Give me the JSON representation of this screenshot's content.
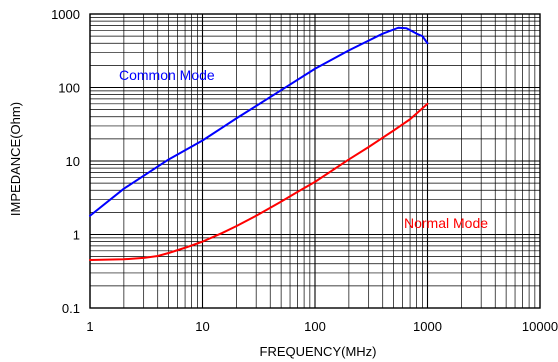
{
  "chart_data": {
    "type": "line",
    "xlabel": "FREQUENCY(MHz)",
    "ylabel": "IMPEDANCE(Ohm)",
    "x_scale": "log",
    "y_scale": "log",
    "xlim": [
      1,
      10000
    ],
    "ylim": [
      0.1,
      1000
    ],
    "grid": true,
    "x_ticks": [
      {
        "value": 1,
        "label": "1"
      },
      {
        "value": 10,
        "label": "10"
      },
      {
        "value": 100,
        "label": "100"
      },
      {
        "value": 1000,
        "label": "1000"
      },
      {
        "value": 10000,
        "label": "10000"
      }
    ],
    "y_ticks": [
      {
        "value": 0.1,
        "label": "0.1"
      },
      {
        "value": 1,
        "label": "1"
      },
      {
        "value": 10,
        "label": "10"
      },
      {
        "value": 100,
        "label": "100"
      },
      {
        "value": 1000,
        "label": "1000"
      }
    ],
    "series": [
      {
        "name": "Common Mode",
        "color": "#0000ff",
        "x": [
          1,
          2,
          5,
          10,
          20,
          50,
          100,
          200,
          400,
          550,
          650,
          800,
          900,
          1000
        ],
        "y": [
          1.8,
          4.2,
          10.5,
          19,
          38,
          92,
          180,
          320,
          540,
          650,
          640,
          540,
          500,
          400
        ]
      },
      {
        "name": "Normal Mode",
        "color": "#ff0000",
        "x": [
          1,
          2,
          3,
          4,
          5,
          7,
          10,
          15,
          20,
          30,
          50,
          70,
          100,
          200,
          300,
          500,
          700,
          1000
        ],
        "y": [
          0.45,
          0.46,
          0.48,
          0.51,
          0.56,
          0.66,
          0.8,
          1.05,
          1.3,
          1.8,
          2.8,
          3.8,
          5.2,
          10.5,
          15.5,
          26,
          37,
          60
        ]
      }
    ],
    "annotations": [
      {
        "text": "Common Mode",
        "color": "#0000ff"
      },
      {
        "text": "Normal Mode",
        "color": "#ff0000"
      }
    ]
  }
}
